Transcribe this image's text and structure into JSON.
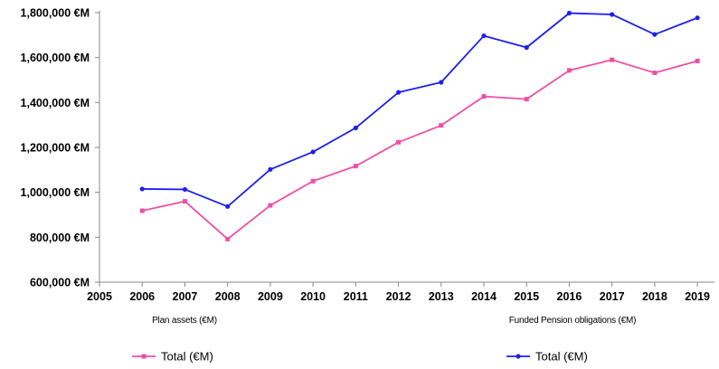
{
  "chart_data": {
    "type": "line",
    "title": "",
    "x": [
      2006,
      2007,
      2008,
      2009,
      2010,
      2011,
      2012,
      2013,
      2014,
      2015,
      2016,
      2017,
      2018,
      2019
    ],
    "x_ticks": [
      "2005",
      "2006",
      "2007",
      "2008",
      "2009",
      "2010",
      "2011",
      "2012",
      "2013",
      "2014",
      "2015",
      "2016",
      "2017",
      "2018",
      "2019"
    ],
    "y_ticks": [
      "600,000 €M",
      "800,000 €M",
      "1,000,000 €M",
      "1,200,000 €M",
      "1,400,000 €M",
      "1,600,000 €M",
      "1,800,000 €M"
    ],
    "xlim": [
      2005,
      2019.4
    ],
    "ylim": [
      600000,
      1800000
    ],
    "grid": false,
    "group_labels": [
      "Plan assets (€M)",
      "Funded Pension obligations (€M)"
    ],
    "series": [
      {
        "name": "Total (€M)",
        "group": "Plan assets (€M)",
        "color": "#ef4fa6",
        "marker": "square",
        "values": [
          918000,
          960000,
          792000,
          942000,
          1050000,
          1117000,
          1223000,
          1298000,
          1427000,
          1415000,
          1543000,
          1590000,
          1532000,
          1585000
        ]
      },
      {
        "name": "Total (€M)",
        "group": "Funded Pension obligations (€M)",
        "color": "#1f1ff0",
        "marker": "circle",
        "values": [
          1015000,
          1013000,
          937000,
          1102000,
          1180000,
          1287000,
          1445000,
          1490000,
          1697000,
          1645000,
          1798000,
          1792000,
          1703000,
          1777000
        ]
      }
    ]
  }
}
